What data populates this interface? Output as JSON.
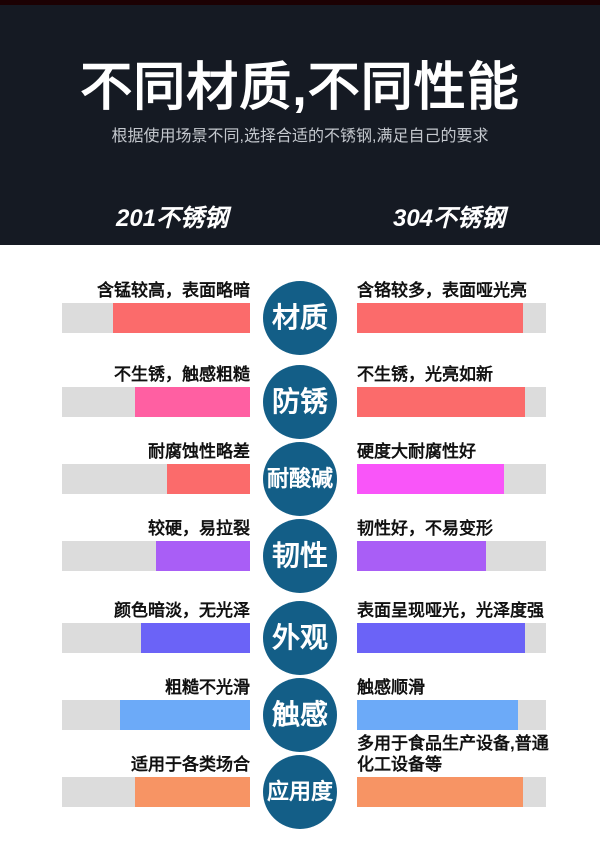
{
  "header": {
    "title": "不同材质,不同性能",
    "subtitle": "根据使用场景不同,选择合适的不锈钢,满足自己的要求",
    "column_left": "201不锈钢",
    "column_right": "304不锈钢"
  },
  "colors": {
    "header_bg": "#151a23",
    "top_strip": "#1c0103",
    "badge": "#135e87",
    "track_gray": "#dcdcdc",
    "title_text": "#ffffff",
    "subtitle_text": "#c4c8ce"
  },
  "rows": [
    {
      "label": "材质",
      "left_text": "含锰较高，表面略暗",
      "left_color": "#fb6b6b",
      "left_fill_pct": 73,
      "right_text": "含铬较多，表面哑光亮",
      "right_color": "#fb6b6b",
      "right_fill_pct": 88
    },
    {
      "label": "防锈",
      "left_text": "不生锈，触感粗糙",
      "left_color": "#ff5fa2",
      "left_fill_pct": 61,
      "right_text": "不生锈，光亮如新",
      "right_color": "#fb6b6b",
      "right_fill_pct": 89
    },
    {
      "label": "耐酸碱",
      "left_text": "耐腐蚀性略差",
      "left_color": "#fb6b6b",
      "left_fill_pct": 44,
      "right_text": "硬度大耐腐性好",
      "right_color": "#f955f9",
      "right_fill_pct": 78
    },
    {
      "label": "韧性",
      "left_text": "较硬，易拉裂",
      "left_color": "#a95ef6",
      "left_fill_pct": 50,
      "right_text": "韧性好，不易变形",
      "right_color": "#a95ef6",
      "right_fill_pct": 68
    },
    {
      "label": "外观",
      "left_text": "颜色暗淡，无光泽",
      "left_color": "#6b63f7",
      "left_fill_pct": 58,
      "right_text": "表面呈现哑光，光泽度强",
      "right_color": "#6b63f7",
      "right_fill_pct": 89
    },
    {
      "label": "触感",
      "left_text": "粗糙不光滑",
      "left_color": "#6caaf8",
      "left_fill_pct": 69,
      "right_text": "触感顺滑",
      "right_color": "#6caaf8",
      "right_fill_pct": 85
    },
    {
      "label": "应用度",
      "left_text": "适用于各类场合",
      "left_color": "#f79464",
      "left_fill_pct": 61,
      "right_text": "多用于食品生产设备,普通\n化工设备等",
      "right_color": "#f79464",
      "right_fill_pct": 88
    }
  ]
}
